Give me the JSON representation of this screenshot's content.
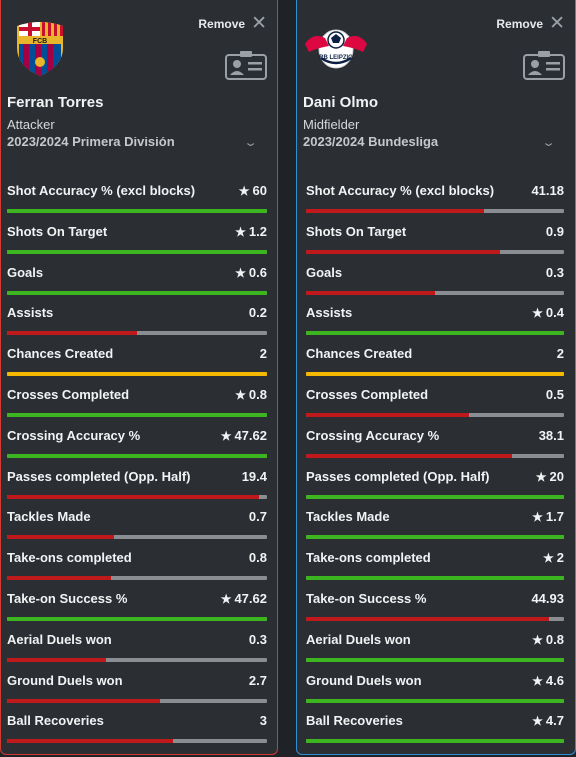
{
  "players": [
    {
      "name": "Ferran Torres",
      "position": "Attacker",
      "season": "2023/2024 Primera División",
      "remove_label": "Remove",
      "club_logo": "fc-barcelona-crest-icon",
      "stats": [
        {
          "label": "Shot Accuracy % (excl blocks)",
          "value": "60",
          "star": true,
          "fill": 1.0,
          "color": "#3cb521"
        },
        {
          "label": "Shots On Target",
          "value": "1.2",
          "star": true,
          "fill": 1.0,
          "color": "#3cb521"
        },
        {
          "label": "Goals",
          "value": "0.6",
          "star": true,
          "fill": 1.0,
          "color": "#3cb521"
        },
        {
          "label": "Assists",
          "value": "0.2",
          "star": false,
          "fill": 0.5,
          "color": "#c0191b"
        },
        {
          "label": "Chances Created",
          "value": "2",
          "star": false,
          "fill": 1.0,
          "color": "#f5b800"
        },
        {
          "label": "Crosses Completed",
          "value": "0.8",
          "star": true,
          "fill": 1.0,
          "color": "#3cb521"
        },
        {
          "label": "Crossing Accuracy %",
          "value": "47.62",
          "star": true,
          "fill": 1.0,
          "color": "#3cb521"
        },
        {
          "label": "Passes completed (Opp. Half)",
          "value": "19.4",
          "star": false,
          "fill": 0.97,
          "color": "#c0191b"
        },
        {
          "label": "Tackles Made",
          "value": "0.7",
          "star": false,
          "fill": 0.41,
          "color": "#c0191b"
        },
        {
          "label": "Take-ons completed",
          "value": "0.8",
          "star": false,
          "fill": 0.4,
          "color": "#c0191b"
        },
        {
          "label": "Take-on Success %",
          "value": "47.62",
          "star": true,
          "fill": 1.0,
          "color": "#3cb521"
        },
        {
          "label": "Aerial Duels won",
          "value": "0.3",
          "star": false,
          "fill": 0.38,
          "color": "#c0191b"
        },
        {
          "label": "Ground Duels won",
          "value": "2.7",
          "star": false,
          "fill": 0.59,
          "color": "#c0191b"
        },
        {
          "label": "Ball Recoveries",
          "value": "3",
          "star": false,
          "fill": 0.64,
          "color": "#c0191b"
        }
      ]
    },
    {
      "name": "Dani Olmo",
      "position": "Midfielder",
      "season": "2023/2024 Bundesliga",
      "remove_label": "Remove",
      "club_logo": "rb-leipzig-crest-icon",
      "stats": [
        {
          "label": "Shot Accuracy % (excl blocks)",
          "value": "41.18",
          "star": false,
          "fill": 0.69,
          "color": "#c0191b"
        },
        {
          "label": "Shots On Target",
          "value": "0.9",
          "star": false,
          "fill": 0.75,
          "color": "#c0191b"
        },
        {
          "label": "Goals",
          "value": "0.3",
          "star": false,
          "fill": 0.5,
          "color": "#c0191b"
        },
        {
          "label": "Assists",
          "value": "0.4",
          "star": true,
          "fill": 1.0,
          "color": "#3cb521"
        },
        {
          "label": "Chances Created",
          "value": "2",
          "star": false,
          "fill": 1.0,
          "color": "#f5b800"
        },
        {
          "label": "Crosses Completed",
          "value": "0.5",
          "star": false,
          "fill": 0.63,
          "color": "#c0191b"
        },
        {
          "label": "Crossing Accuracy %",
          "value": "38.1",
          "star": false,
          "fill": 0.8,
          "color": "#c0191b"
        },
        {
          "label": "Passes completed (Opp. Half)",
          "value": "20",
          "star": true,
          "fill": 1.0,
          "color": "#3cb521"
        },
        {
          "label": "Tackles Made",
          "value": "1.7",
          "star": true,
          "fill": 1.0,
          "color": "#3cb521"
        },
        {
          "label": "Take-ons completed",
          "value": "2",
          "star": true,
          "fill": 1.0,
          "color": "#3cb521"
        },
        {
          "label": "Take-on Success %",
          "value": "44.93",
          "star": false,
          "fill": 0.94,
          "color": "#c0191b"
        },
        {
          "label": "Aerial Duels won",
          "value": "0.8",
          "star": true,
          "fill": 1.0,
          "color": "#3cb521"
        },
        {
          "label": "Ground Duels won",
          "value": "4.6",
          "star": true,
          "fill": 1.0,
          "color": "#3cb521"
        },
        {
          "label": "Ball Recoveries",
          "value": "4.7",
          "star": true,
          "fill": 1.0,
          "color": "#3cb521"
        }
      ]
    }
  ],
  "star_glyph": "★",
  "close_glyph": "✕",
  "chevron_glyph": "⌄"
}
